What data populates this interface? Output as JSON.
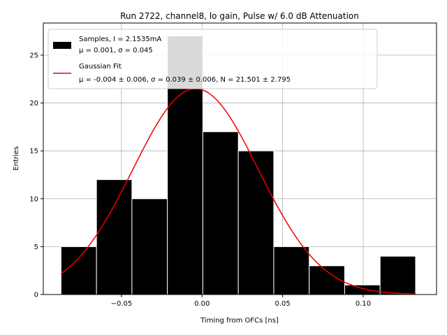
{
  "chart_data": {
    "type": "bar",
    "title": "Run 2722, channel8, lo gain, Pulse w/ 6.0 dB Attenuation",
    "xlabel": "Timing from OFCs [ns]",
    "ylabel": "Entries",
    "xlim": [
      -0.0985,
      0.1455
    ],
    "ylim": [
      0,
      28.35
    ],
    "x_ticks": [
      -0.05,
      0.0,
      0.05,
      0.1
    ],
    "x_tick_labels": [
      "−0.05",
      "0.00",
      "0.05",
      "0.10"
    ],
    "y_ticks": [
      0,
      5,
      10,
      15,
      20,
      25
    ],
    "y_tick_labels": [
      "0",
      "5",
      "10",
      "15",
      "20",
      "25"
    ],
    "grid": true,
    "histogram": {
      "name": "Samples, I = 2.1535mA",
      "bin_edges": [
        -0.0875,
        -0.0655,
        -0.0435,
        -0.0215,
        0.0005,
        0.0225,
        0.0445,
        0.0665,
        0.0885,
        0.1105,
        0.1325
      ],
      "counts": [
        5,
        12,
        10,
        27,
        17,
        15,
        5,
        3,
        1,
        4
      ],
      "color": "#000000",
      "edgecolor": "#ffffff"
    },
    "fit": {
      "name": "Gaussian Fit",
      "mu": -0.004,
      "sigma": 0.039,
      "N": 21.501,
      "x_range": [
        -0.0875,
        0.1325
      ],
      "color": "#ee0000"
    },
    "legend": {
      "position": "upper-left",
      "entries": [
        {
          "line1": "Samples, I = 2.1535mA",
          "line2": "μ = 0.001, σ = 0.045"
        },
        {
          "line1": "Gaussian Fit",
          "line2": "μ = -0.004 ± 0.006, σ = 0.039 ± 0.006, N = 21.501 ± 2.795"
        }
      ]
    }
  }
}
